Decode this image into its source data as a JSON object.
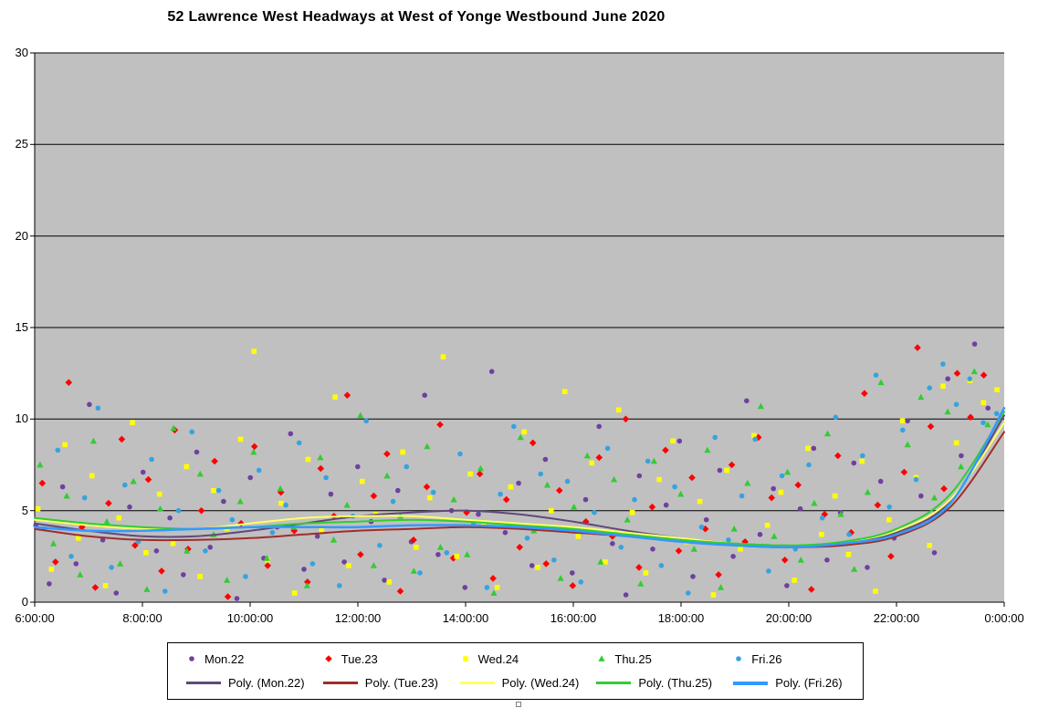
{
  "chart_data": {
    "type": "scatter",
    "title": "52 Lawrence West Headways at West of Yonge Westbound June 2020",
    "plot_bg": "#c0c0c0",
    "gridline_color": "#000000",
    "axis_color": "#000000",
    "legend_position": "bottom",
    "x_axis": {
      "min": 6,
      "max": 24,
      "tick_hours": [
        6,
        8,
        10,
        12,
        14,
        16,
        18,
        20,
        22,
        24
      ],
      "tick_labels": [
        "6:00:00",
        "8:00:00",
        "10:00:00",
        "12:00:00",
        "14:00:00",
        "16:00:00",
        "18:00:00",
        "20:00:00",
        "22:00:00",
        "0:00:00"
      ]
    },
    "y_axis": {
      "min": 0,
      "max": 30,
      "ticks": [
        0,
        5,
        10,
        15,
        20,
        25,
        30
      ]
    },
    "series": [
      {
        "name": "Mon.22",
        "marker": "circle",
        "color": "#7040a0",
        "x_start": 6.02,
        "x_step": 0.249,
        "values": [
          4.2,
          1.0,
          6.3,
          2.1,
          10.8,
          3.4,
          0.5,
          5.2,
          7.1,
          2.8,
          4.6,
          1.5,
          8.2,
          3.0,
          5.5,
          0.2,
          6.8,
          2.4,
          4.1,
          9.2,
          1.8,
          3.6,
          5.9,
          2.2,
          7.4,
          4.4,
          1.2,
          6.1,
          3.3,
          11.3,
          2.6,
          5.0,
          0.8,
          4.8,
          12.6,
          3.8,
          6.5,
          2.0,
          7.8,
          4.0,
          1.6,
          5.6,
          9.6,
          3.2,
          0.4,
          6.9,
          2.9,
          5.3,
          8.8,
          1.4,
          4.5,
          7.2,
          2.5,
          11.0,
          3.7,
          6.2,
          0.9,
          5.1,
          8.4,
          2.3,
          4.9,
          7.6,
          1.9,
          6.6,
          3.5,
          9.9,
          5.8,
          2.7,
          12.2,
          8.0,
          14.1,
          10.6
        ]
      },
      {
        "name": "Tue.23",
        "marker": "diamond",
        "color": "#ff0000",
        "x_start": 6.14,
        "x_step": 0.2462,
        "values": [
          6.5,
          2.2,
          12.0,
          4.1,
          0.8,
          5.4,
          8.9,
          3.1,
          6.7,
          1.7,
          9.4,
          2.9,
          5.0,
          7.7,
          0.3,
          4.3,
          8.5,
          2.0,
          6.0,
          3.9,
          1.1,
          7.3,
          4.7,
          11.3,
          2.6,
          5.8,
          8.1,
          0.6,
          3.4,
          6.3,
          9.7,
          2.4,
          4.9,
          7.0,
          1.3,
          5.6,
          3.0,
          8.7,
          2.1,
          6.1,
          0.9,
          4.4,
          7.9,
          3.6,
          10.0,
          1.9,
          5.2,
          8.3,
          2.8,
          6.8,
          4.0,
          1.5,
          7.5,
          3.3,
          9.0,
          5.7,
          2.3,
          6.4,
          0.7,
          4.8,
          8.0,
          3.8,
          11.4,
          5.3,
          2.5,
          7.1,
          13.9,
          9.6,
          6.2,
          12.5,
          10.1,
          12.4
        ]
      },
      {
        "name": "Wed.24",
        "marker": "square",
        "color": "#ffff00",
        "x_start": 6.06,
        "x_step": 0.2508,
        "values": [
          5.1,
          1.8,
          8.6,
          3.5,
          6.9,
          0.9,
          4.6,
          9.8,
          2.7,
          5.9,
          3.2,
          7.4,
          1.4,
          6.1,
          4.0,
          8.9,
          13.7,
          2.3,
          5.4,
          0.5,
          7.8,
          3.9,
          11.2,
          2.0,
          6.6,
          4.8,
          1.1,
          8.2,
          3.0,
          5.7,
          13.4,
          2.5,
          7.0,
          4.3,
          0.8,
          6.3,
          9.3,
          1.9,
          5.0,
          11.5,
          3.6,
          7.6,
          2.2,
          10.5,
          4.9,
          1.6,
          6.7,
          8.8,
          3.3,
          5.5,
          0.4,
          7.2,
          2.9,
          9.1,
          4.2,
          6.0,
          1.2,
          8.4,
          3.7,
          5.8,
          2.6,
          7.7,
          0.6,
          4.5,
          9.9,
          6.8,
          3.1,
          11.8,
          8.7,
          12.1,
          10.9,
          11.6
        ]
      },
      {
        "name": "Thu.25",
        "marker": "triangle",
        "color": "#33cc33",
        "x_start": 6.1,
        "x_step": 0.2478,
        "values": [
          7.5,
          3.2,
          5.8,
          1.5,
          8.8,
          4.4,
          2.1,
          6.6,
          0.7,
          5.1,
          9.5,
          2.8,
          7.0,
          3.7,
          1.2,
          5.5,
          8.2,
          2.4,
          6.2,
          4.1,
          0.9,
          7.9,
          3.4,
          5.3,
          10.2,
          2.0,
          6.9,
          4.7,
          1.7,
          8.5,
          3.0,
          5.6,
          2.6,
          7.3,
          0.5,
          4.2,
          9.0,
          3.9,
          6.4,
          1.3,
          5.2,
          8.0,
          2.2,
          6.7,
          4.5,
          1.0,
          7.7,
          3.5,
          5.9,
          2.9,
          8.3,
          0.8,
          4.0,
          6.5,
          10.7,
          3.6,
          7.1,
          2.3,
          5.4,
          9.2,
          4.8,
          1.8,
          6.0,
          12.0,
          3.8,
          8.6,
          11.2,
          5.7,
          10.4,
          7.4,
          12.6,
          9.7
        ]
      },
      {
        "name": "Fri.26",
        "marker": "circle",
        "color": "#35a3e0",
        "x_start": 6.18,
        "x_step": 0.249,
        "values": [
          4.0,
          8.3,
          2.5,
          5.7,
          10.6,
          1.9,
          6.4,
          3.3,
          7.8,
          0.6,
          5.0,
          9.3,
          2.8,
          6.1,
          4.5,
          1.4,
          7.2,
          3.8,
          5.3,
          8.7,
          2.1,
          6.8,
          0.9,
          4.7,
          9.9,
          3.1,
          5.5,
          7.4,
          1.6,
          6.0,
          2.7,
          8.1,
          4.3,
          0.8,
          5.9,
          9.6,
          3.5,
          7.0,
          2.3,
          6.6,
          1.1,
          4.9,
          8.4,
          3.0,
          5.6,
          7.7,
          2.0,
          6.3,
          0.5,
          4.1,
          9.0,
          3.4,
          5.8,
          8.9,
          1.7,
          6.9,
          2.9,
          7.5,
          4.6,
          10.1,
          3.7,
          8.0,
          12.4,
          5.2,
          9.4,
          6.7,
          11.7,
          13.0,
          10.8,
          12.2,
          9.8,
          10.3
        ]
      }
    ],
    "poly_series": [
      {
        "label": "Poly. (Mon.22)",
        "color": "#5f497a",
        "width": 2,
        "points": [
          [
            6,
            4.3
          ],
          [
            7,
            3.9
          ],
          [
            8,
            3.6
          ],
          [
            9,
            3.6
          ],
          [
            10,
            3.9
          ],
          [
            11,
            4.3
          ],
          [
            12,
            4.7
          ],
          [
            13,
            4.9
          ],
          [
            14,
            5.0
          ],
          [
            15,
            4.8
          ],
          [
            16,
            4.4
          ],
          [
            17,
            3.9
          ],
          [
            18,
            3.5
          ],
          [
            19,
            3.2
          ],
          [
            20,
            3.1
          ],
          [
            21,
            3.2
          ],
          [
            22,
            3.8
          ],
          [
            23,
            5.5
          ],
          [
            24,
            10.2
          ]
        ]
      },
      {
        "label": "Poly. (Tue.23)",
        "color": "#a02c2a",
        "width": 2,
        "points": [
          [
            6,
            4.0
          ],
          [
            7,
            3.6
          ],
          [
            8,
            3.4
          ],
          [
            9,
            3.4
          ],
          [
            10,
            3.5
          ],
          [
            11,
            3.7
          ],
          [
            12,
            3.9
          ],
          [
            13,
            4.0
          ],
          [
            14,
            4.1
          ],
          [
            15,
            4.0
          ],
          [
            16,
            3.8
          ],
          [
            17,
            3.6
          ],
          [
            18,
            3.3
          ],
          [
            19,
            3.1
          ],
          [
            20,
            3.0
          ],
          [
            21,
            3.1
          ],
          [
            22,
            3.6
          ],
          [
            23,
            5.2
          ],
          [
            24,
            9.3
          ]
        ]
      },
      {
        "label": "Poly. (Wed.24)",
        "color": "#ffff66",
        "width": 2,
        "points": [
          [
            6,
            4.5
          ],
          [
            7,
            4.2
          ],
          [
            8,
            4.0
          ],
          [
            9,
            4.0
          ],
          [
            10,
            4.3
          ],
          [
            11,
            4.6
          ],
          [
            12,
            4.7
          ],
          [
            13,
            4.7
          ],
          [
            14,
            4.5
          ],
          [
            15,
            4.3
          ],
          [
            16,
            4.1
          ],
          [
            17,
            3.8
          ],
          [
            18,
            3.5
          ],
          [
            19,
            3.2
          ],
          [
            20,
            3.1
          ],
          [
            21,
            3.3
          ],
          [
            22,
            3.9
          ],
          [
            23,
            5.6
          ],
          [
            24,
            9.8
          ]
        ]
      },
      {
        "label": "Poly. (Thu.25)",
        "color": "#33cc33",
        "width": 2,
        "points": [
          [
            6,
            4.6
          ],
          [
            7,
            4.3
          ],
          [
            8,
            4.1
          ],
          [
            9,
            4.0
          ],
          [
            10,
            4.1
          ],
          [
            11,
            4.3
          ],
          [
            12,
            4.4
          ],
          [
            13,
            4.5
          ],
          [
            14,
            4.4
          ],
          [
            15,
            4.2
          ],
          [
            16,
            4.0
          ],
          [
            17,
            3.7
          ],
          [
            18,
            3.4
          ],
          [
            19,
            3.2
          ],
          [
            20,
            3.1
          ],
          [
            21,
            3.3
          ],
          [
            22,
            4.0
          ],
          [
            23,
            5.9
          ],
          [
            24,
            10.4
          ]
        ]
      },
      {
        "label": "Poly. (Fri.26)",
        "color": "#3399ff",
        "width": 2.5,
        "points": [
          [
            6,
            4.1
          ],
          [
            7,
            3.9
          ],
          [
            8,
            3.9
          ],
          [
            9,
            4.0
          ],
          [
            10,
            4.1
          ],
          [
            11,
            4.1
          ],
          [
            12,
            4.1
          ],
          [
            13,
            4.2
          ],
          [
            14,
            4.2
          ],
          [
            15,
            4.1
          ],
          [
            16,
            3.9
          ],
          [
            17,
            3.6
          ],
          [
            18,
            3.3
          ],
          [
            19,
            3.1
          ],
          [
            20,
            3.0
          ],
          [
            21,
            3.2
          ],
          [
            22,
            3.7
          ],
          [
            23,
            5.4
          ],
          [
            24,
            10.6
          ]
        ]
      }
    ]
  }
}
